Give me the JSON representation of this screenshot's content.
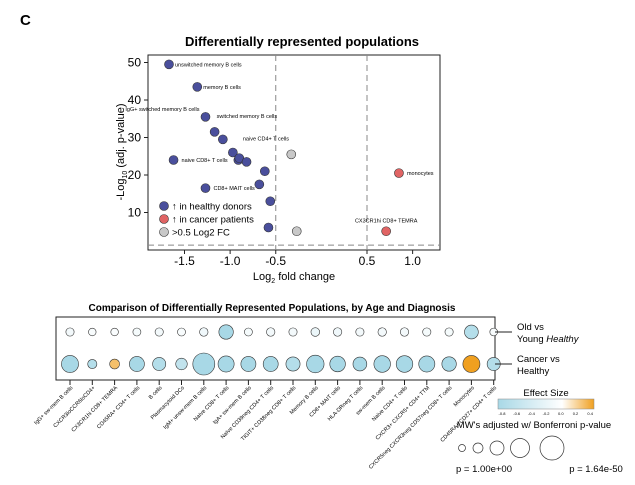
{
  "panel_letter": "C",
  "chart_data": [
    {
      "type": "scatter",
      "title": "Differentially represented populations",
      "xlabel": "Log2 fold change",
      "ylabel": "-Log10 (adj. p-value)",
      "xlim": [
        -1.9,
        1.3
      ],
      "ylim": [
        0,
        52
      ],
      "xticks": [
        -1.5,
        -1.0,
        -0.5,
        0.5,
        1.0
      ],
      "xtick_labels": [
        "-1.5",
        "-1.0",
        "-0.5",
        "0.5",
        "1.0"
      ],
      "yticks": [
        10,
        20,
        30,
        40,
        50
      ],
      "reference_lines": {
        "vertical": [
          -0.5,
          0.5
        ],
        "horizontal": [
          1.3
        ]
      },
      "colors": {
        "healthy": "#4a4f9c",
        "cancer": "#e06464",
        "small_fc": "#c8c8c8"
      },
      "legend": {
        "placement": "bottom-left",
        "entries": [
          {
            "key": "healthy",
            "arrow": "↑",
            "label": "in healthy donors"
          },
          {
            "key": "cancer",
            "arrow": "↑",
            "label": "in cancer patients"
          },
          {
            "key": "small_fc",
            "arrow": "",
            "label": ">0.5 Log2 FC"
          }
        ]
      },
      "points": [
        {
          "x": -1.67,
          "y": 49.5,
          "group": "healthy",
          "label": "unswitched memory B cells"
        },
        {
          "x": -1.36,
          "y": 43.5,
          "group": "healthy",
          "label": "memory B cells"
        },
        {
          "x": -1.27,
          "y": 35.5,
          "group": "healthy",
          "label": "IgG+ switched memory B cells"
        },
        {
          "x": -1.17,
          "y": 31.5,
          "group": "healthy",
          "label": "switched memory B cells"
        },
        {
          "x": -1.08,
          "y": 29.5,
          "group": "healthy",
          "label": ""
        },
        {
          "x": -0.97,
          "y": 26.0,
          "group": "healthy",
          "label": "naive CD4+ T cells"
        },
        {
          "x": -0.91,
          "y": 24.0,
          "group": "healthy",
          "label": ""
        },
        {
          "x": -0.9,
          "y": 24.5,
          "group": "healthy",
          "label": ""
        },
        {
          "x": -0.82,
          "y": 23.5,
          "group": "healthy",
          "label": ""
        },
        {
          "x": -1.62,
          "y": 24.0,
          "group": "healthy",
          "label": "naive CD8+ T cells"
        },
        {
          "x": -0.62,
          "y": 21.0,
          "group": "healthy",
          "label": ""
        },
        {
          "x": -1.27,
          "y": 16.5,
          "group": "healthy",
          "label": "CD8+ MAIT cells"
        },
        {
          "x": -0.68,
          "y": 17.5,
          "group": "healthy",
          "label": ""
        },
        {
          "x": -0.56,
          "y": 13.0,
          "group": "healthy",
          "label": ""
        },
        {
          "x": -0.58,
          "y": 6.0,
          "group": "healthy",
          "label": ""
        },
        {
          "x": -0.33,
          "y": 25.5,
          "group": "small_fc",
          "label": ""
        },
        {
          "x": -0.27,
          "y": 5.0,
          "group": "small_fc",
          "label": ""
        },
        {
          "x": 0.85,
          "y": 20.5,
          "group": "cancer",
          "label": "monocytes"
        },
        {
          "x": 0.71,
          "y": 5.0,
          "group": "cancer",
          "label": "CX3CR1hi CD8+ TEMRA"
        }
      ]
    },
    {
      "type": "bubble-grid",
      "title": "Comparison of Differentially Represented Populations, by Age and Diagnosis",
      "rows": [
        {
          "label_1": "Old vs",
          "label_2": "Young ",
          "label_2_em": "Healthy"
        },
        {
          "label_1": "Cancer vs",
          "label_2": "Healthy",
          "label_2_em": ""
        }
      ],
      "categories": [
        "IgG+ sw-mem B cells",
        "CXCR3loCCR6loCD4+",
        "CX3CR1hi CD8+ TEMRA",
        "CD45RA+ CD4+ T cells",
        "B cells",
        "Plasmacytoid DCs",
        "IgM+ unsw-mem B cells",
        "Naïve CD8+ T cells",
        "IgA+ sw-mem B cells",
        "Naïve CD39neg CD4+ T cells",
        "TIGIT+ CD38neg CD8+ T cells",
        "Memory B cells",
        "CD8+ MAIT cells",
        "HLA-DRneg T cells",
        "sw-mem B cells",
        "Naïve CD4+ T cells",
        "CXCR3+ CXCR5+ CD4+ TTM",
        "CXCR5neg CXCR3neg CD57neg CD8+ T cells",
        "Monocytes",
        "CD45RA+ CD27+ CD4+ T cells"
      ],
      "effect_size": [
        [
          -0.05,
          -0.03,
          -0.02,
          -0.04,
          -0.05,
          -0.03,
          -0.06,
          -0.35,
          -0.04,
          -0.05,
          -0.05,
          -0.08,
          -0.06,
          -0.05,
          -0.05,
          -0.05,
          -0.04,
          -0.04,
          -0.3,
          -0.03
        ],
        [
          -0.45,
          -0.3,
          0.3,
          -0.35,
          -0.3,
          -0.25,
          -0.5,
          -0.4,
          -0.35,
          -0.35,
          -0.3,
          -0.45,
          -0.35,
          -0.35,
          -0.4,
          -0.4,
          -0.4,
          -0.35,
          0.6,
          -0.3
        ]
      ],
      "neg_log10_p": [
        [
          1.0,
          0.5,
          0.5,
          0.8,
          1.0,
          0.8,
          1.2,
          14.0,
          0.8,
          1.2,
          1.0,
          1.4,
          1.2,
          1.0,
          1.2,
          1.2,
          1.0,
          1.0,
          12.0,
          0.6
        ],
        [
          24.0,
          2.0,
          3.0,
          16.0,
          10.0,
          6.0,
          50.0,
          20.0,
          16.0,
          16.0,
          13.0,
          26.0,
          18.0,
          12.0,
          22.0,
          22.0,
          20.0,
          14.0,
          24.0,
          10.0
        ]
      ],
      "colorbar": {
        "title": "Effect Size",
        "min": -0.8,
        "max": 0.4,
        "ticks": [
          "-0.8",
          "-0.6",
          "-0.4",
          "-0.2",
          "0.0",
          "0.2",
          "0.4"
        ],
        "colors": {
          "negative": "#a8d8e6",
          "zero": "#ffffff",
          "positive": "#f0a020"
        }
      },
      "size_legend": {
        "title": "MW's adjusted w/ Bonferroni p-value",
        "min_label": "p = 1.00e+00",
        "max_label": "p = 1.64e-50"
      }
    }
  ]
}
